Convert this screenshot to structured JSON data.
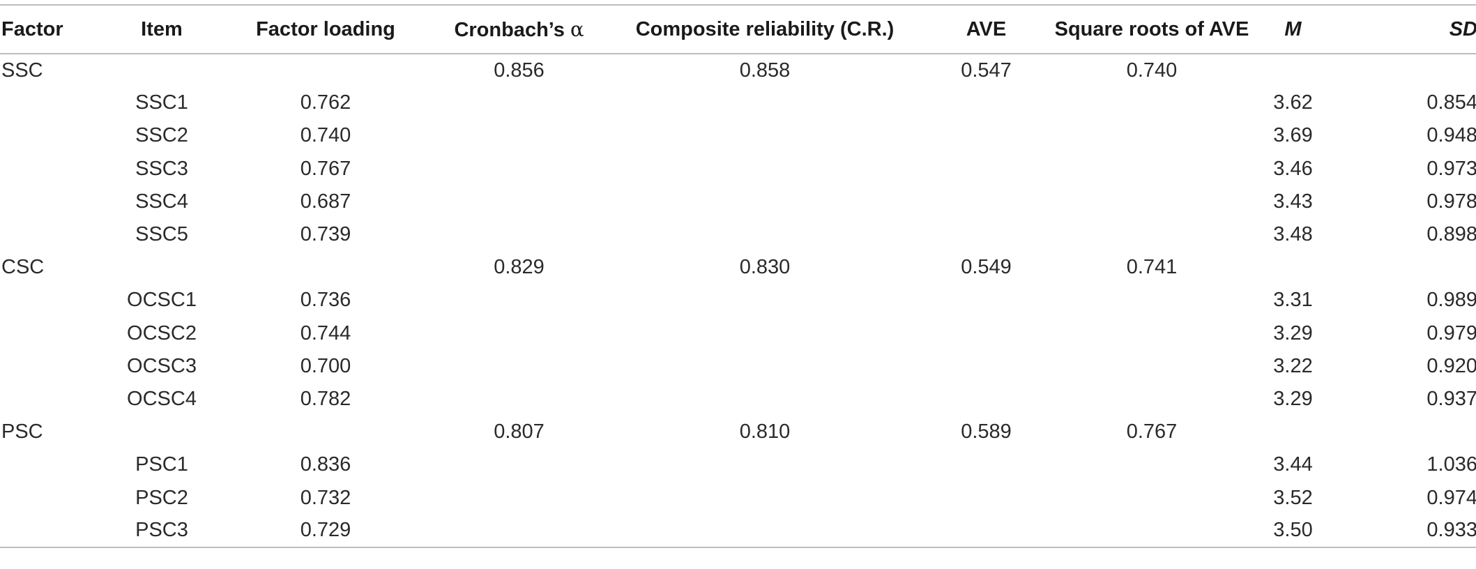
{
  "table": {
    "headers": {
      "factor": "Factor",
      "item": "Item",
      "loading": "Factor loading",
      "alpha_prefix": "Cronbach’s ",
      "alpha_symbol": "α",
      "cr": "Composite reliability (C.R.)",
      "ave": "AVE",
      "sqrt_ave": "Square roots of AVE",
      "m": "M",
      "sd": "SD"
    },
    "rows": [
      {
        "factor": "SSC",
        "item": "",
        "loading": "",
        "alpha": "0.856",
        "cr": "0.858",
        "ave": "0.547",
        "sqrt": "0.740",
        "m": "",
        "sd": ""
      },
      {
        "factor": "",
        "item": "SSC1",
        "loading": "0.762",
        "alpha": "",
        "cr": "",
        "ave": "",
        "sqrt": "",
        "m": "3.62",
        "sd": "0.854"
      },
      {
        "factor": "",
        "item": "SSC2",
        "loading": "0.740",
        "alpha": "",
        "cr": "",
        "ave": "",
        "sqrt": "",
        "m": "3.69",
        "sd": "0.948"
      },
      {
        "factor": "",
        "item": "SSC3",
        "loading": "0.767",
        "alpha": "",
        "cr": "",
        "ave": "",
        "sqrt": "",
        "m": "3.46",
        "sd": "0.973"
      },
      {
        "factor": "",
        "item": "SSC4",
        "loading": "0.687",
        "alpha": "",
        "cr": "",
        "ave": "",
        "sqrt": "",
        "m": "3.43",
        "sd": "0.978"
      },
      {
        "factor": "",
        "item": "SSC5",
        "loading": "0.739",
        "alpha": "",
        "cr": "",
        "ave": "",
        "sqrt": "",
        "m": "3.48",
        "sd": "0.898"
      },
      {
        "factor": "CSC",
        "item": "",
        "loading": "",
        "alpha": "0.829",
        "cr": "0.830",
        "ave": "0.549",
        "sqrt": "0.741",
        "m": "",
        "sd": ""
      },
      {
        "factor": "",
        "item": "OCSC1",
        "loading": "0.736",
        "alpha": "",
        "cr": "",
        "ave": "",
        "sqrt": "",
        "m": "3.31",
        "sd": "0.989"
      },
      {
        "factor": "",
        "item": "OCSC2",
        "loading": "0.744",
        "alpha": "",
        "cr": "",
        "ave": "",
        "sqrt": "",
        "m": "3.29",
        "sd": "0.979"
      },
      {
        "factor": "",
        "item": "OCSC3",
        "loading": "0.700",
        "alpha": "",
        "cr": "",
        "ave": "",
        "sqrt": "",
        "m": "3.22",
        "sd": "0.920"
      },
      {
        "factor": "",
        "item": "OCSC4",
        "loading": "0.782",
        "alpha": "",
        "cr": "",
        "ave": "",
        "sqrt": "",
        "m": "3.29",
        "sd": "0.937"
      },
      {
        "factor": "PSC",
        "item": "",
        "loading": "",
        "alpha": "0.807",
        "cr": "0.810",
        "ave": "0.589",
        "sqrt": "0.767",
        "m": "",
        "sd": ""
      },
      {
        "factor": "",
        "item": "PSC1",
        "loading": "0.836",
        "alpha": "",
        "cr": "",
        "ave": "",
        "sqrt": "",
        "m": "3.44",
        "sd": "1.036"
      },
      {
        "factor": "",
        "item": "PSC2",
        "loading": "0.732",
        "alpha": "",
        "cr": "",
        "ave": "",
        "sqrt": "",
        "m": "3.52",
        "sd": "0.974"
      },
      {
        "factor": "",
        "item": "PSC3",
        "loading": "0.729",
        "alpha": "",
        "cr": "",
        "ave": "",
        "sqrt": "",
        "m": "3.50",
        "sd": "0.933"
      }
    ]
  }
}
